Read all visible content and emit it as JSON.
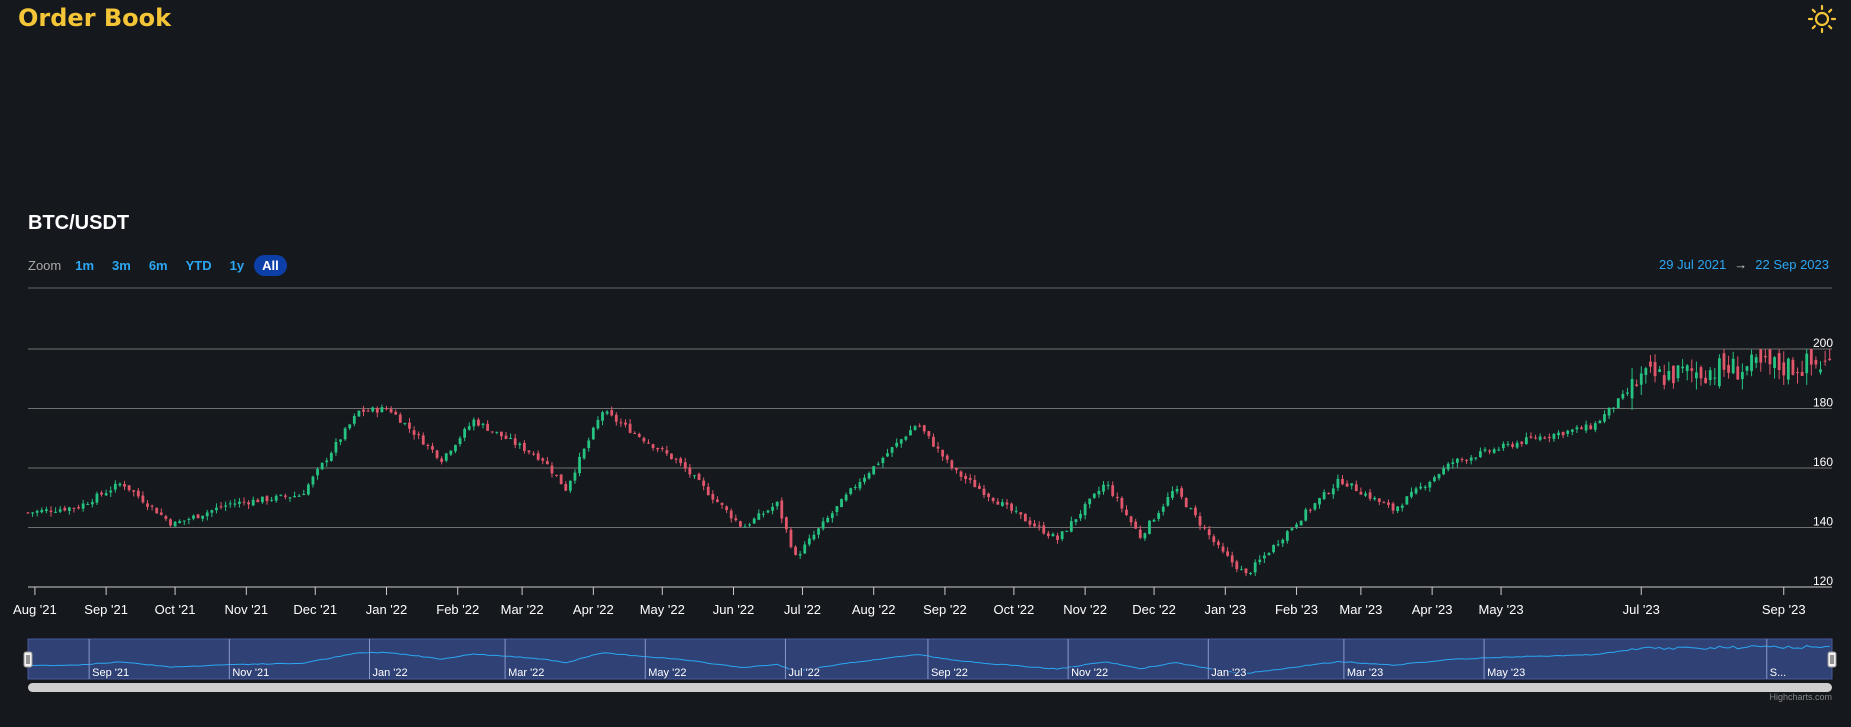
{
  "app": {
    "title": "Order Book",
    "theme_icon": "sun-icon"
  },
  "chart_title": "BTC/USDT",
  "zoom": {
    "label": "Zoom",
    "buttons": [
      "1m",
      "3m",
      "6m",
      "YTD",
      "1y",
      "All"
    ],
    "active": "All"
  },
  "range": {
    "from": "29 Jul 2021",
    "arrow": "→",
    "to": "22 Sep 2023"
  },
  "credit": "Highcharts.com",
  "colors": {
    "up": "#26c281",
    "down": "#e0566a",
    "navigator": "#2f4175",
    "navigator_line": "#2ba7f4",
    "title": "#f4c537"
  },
  "chart_data": {
    "type": "candlestick",
    "series_name": "BTC/USDT",
    "y_axis": {
      "ticks": [
        120,
        140,
        160,
        180,
        200
      ],
      "min": 120,
      "max": 200,
      "position": "right"
    },
    "x_axis": {
      "start": "2021-07-29",
      "end": "2023-09-22",
      "ticks": [
        {
          "date": "2021-08-01",
          "label": "Aug '21"
        },
        {
          "date": "2021-09-01",
          "label": "Sep '21"
        },
        {
          "date": "2021-10-01",
          "label": "Oct '21"
        },
        {
          "date": "2021-11-01",
          "label": "Nov '21"
        },
        {
          "date": "2021-12-01",
          "label": "Dec '21"
        },
        {
          "date": "2022-01-01",
          "label": "Jan '22"
        },
        {
          "date": "2022-02-01",
          "label": "Feb '22"
        },
        {
          "date": "2022-03-01",
          "label": "Mar '22"
        },
        {
          "date": "2022-04-01",
          "label": "Apr '22"
        },
        {
          "date": "2022-05-01",
          "label": "May '22"
        },
        {
          "date": "2022-06-01",
          "label": "Jun '22"
        },
        {
          "date": "2022-07-01",
          "label": "Jul '22"
        },
        {
          "date": "2022-08-01",
          "label": "Aug '22"
        },
        {
          "date": "2022-09-01",
          "label": "Sep '22"
        },
        {
          "date": "2022-10-01",
          "label": "Oct '22"
        },
        {
          "date": "2022-11-01",
          "label": "Nov '22"
        },
        {
          "date": "2022-12-01",
          "label": "Dec '22"
        },
        {
          "date": "2023-01-01",
          "label": "Jan '23"
        },
        {
          "date": "2023-02-01",
          "label": "Feb '23"
        },
        {
          "date": "2023-03-01",
          "label": "Mar '23"
        },
        {
          "date": "2023-04-01",
          "label": "Apr '23"
        },
        {
          "date": "2023-05-01",
          "label": "May '23"
        },
        {
          "date": "2023-07-01",
          "label": "Jul '23"
        },
        {
          "date": "2023-09-01",
          "label": "Sep '23"
        }
      ]
    },
    "close_path": [
      {
        "date": "2021-07-29",
        "close": 145
      },
      {
        "date": "2021-08-20",
        "close": 147
      },
      {
        "date": "2021-09-08",
        "close": 155
      },
      {
        "date": "2021-09-30",
        "close": 141
      },
      {
        "date": "2021-10-25",
        "close": 148
      },
      {
        "date": "2021-11-25",
        "close": 151
      },
      {
        "date": "2021-12-20",
        "close": 179
      },
      {
        "date": "2022-01-02",
        "close": 180
      },
      {
        "date": "2022-01-25",
        "close": 163
      },
      {
        "date": "2022-02-08",
        "close": 176
      },
      {
        "date": "2022-03-10",
        "close": 163
      },
      {
        "date": "2022-03-20",
        "close": 153
      },
      {
        "date": "2022-04-05",
        "close": 179
      },
      {
        "date": "2022-05-08",
        "close": 162
      },
      {
        "date": "2022-06-05",
        "close": 140
      },
      {
        "date": "2022-06-20",
        "close": 148
      },
      {
        "date": "2022-06-28",
        "close": 130
      },
      {
        "date": "2022-07-25",
        "close": 155
      },
      {
        "date": "2022-08-20",
        "close": 175
      },
      {
        "date": "2022-09-05",
        "close": 159
      },
      {
        "date": "2022-10-01",
        "close": 145
      },
      {
        "date": "2022-10-20",
        "close": 136
      },
      {
        "date": "2022-11-10",
        "close": 155
      },
      {
        "date": "2022-11-25",
        "close": 137
      },
      {
        "date": "2022-12-10",
        "close": 153
      },
      {
        "date": "2022-12-30",
        "close": 132
      },
      {
        "date": "2023-01-10",
        "close": 124
      },
      {
        "date": "2023-02-05",
        "close": 145
      },
      {
        "date": "2023-02-20",
        "close": 156
      },
      {
        "date": "2023-03-15",
        "close": 146
      },
      {
        "date": "2023-04-10",
        "close": 162
      },
      {
        "date": "2023-05-15",
        "close": 170
      },
      {
        "date": "2023-06-10",
        "close": 174
      },
      {
        "date": "2023-07-01",
        "close": 190
      },
      {
        "date": "2023-08-01",
        "close": 193
      },
      {
        "date": "2023-09-22",
        "close": 195
      }
    ],
    "navigator": {
      "labels": [
        "Sep '21",
        "Nov '21",
        "Jan '22",
        "Mar '22",
        "May '22",
        "Jul '22",
        "Sep '22",
        "Nov '22",
        "Jan '23",
        "Mar '23",
        "May '23",
        "S..."
      ]
    }
  }
}
